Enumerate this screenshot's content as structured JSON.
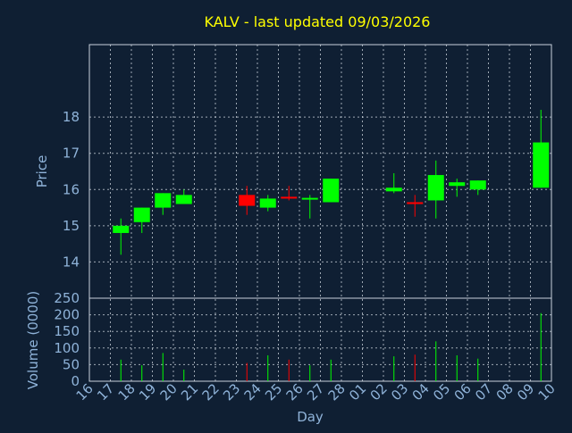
{
  "chart_data": {
    "type": "candlestick",
    "title": "KALV - last updated 09/03/2026",
    "xlabel": "Day",
    "price_ylabel": "Price",
    "volume_ylabel": "Volume (0000)",
    "x_ticks": [
      "16",
      "17",
      "18",
      "19",
      "20",
      "21",
      "22",
      "23",
      "24",
      "25",
      "26",
      "27",
      "28",
      "01",
      "02",
      "03",
      "04",
      "05",
      "06",
      "07",
      "08",
      "09",
      "10"
    ],
    "price_ylim": [
      13.0,
      20.0
    ],
    "price_ticks": [
      14,
      15,
      16,
      17,
      18
    ],
    "volume_ylim": [
      0,
      250
    ],
    "volume_ticks": [
      0,
      50,
      100,
      150,
      200,
      250
    ],
    "grid": true,
    "colors": {
      "background": "#0f1f33",
      "up": "#00ff00",
      "down": "#ff0000",
      "title": "#ffff00",
      "axis_text": "#8fb3d9",
      "grid": "#d0d8e0"
    },
    "candles": [
      {
        "day": "17",
        "open": 14.8,
        "high": 15.2,
        "low": 14.2,
        "close": 15.0,
        "volume": 65
      },
      {
        "day": "18",
        "open": 15.1,
        "high": 15.5,
        "low": 14.8,
        "close": 15.5,
        "volume": 48
      },
      {
        "day": "19",
        "open": 15.5,
        "high": 15.9,
        "low": 15.3,
        "close": 15.9,
        "volume": 85
      },
      {
        "day": "20",
        "open": 15.6,
        "high": 16.0,
        "low": 15.6,
        "close": 15.85,
        "volume": 35
      },
      {
        "day": "23",
        "open": 15.85,
        "high": 16.1,
        "low": 15.3,
        "close": 15.55,
        "volume": 55
      },
      {
        "day": "24",
        "open": 15.5,
        "high": 15.85,
        "low": 15.4,
        "close": 15.75,
        "volume": 78
      },
      {
        "day": "25",
        "open": 15.8,
        "high": 16.1,
        "low": 15.7,
        "close": 15.75,
        "volume": 65
      },
      {
        "day": "26",
        "open": 15.73,
        "high": 15.85,
        "low": 15.2,
        "close": 15.77,
        "volume": 48
      },
      {
        "day": "27",
        "open": 15.65,
        "high": 16.3,
        "low": 15.65,
        "close": 16.3,
        "volume": 65
      },
      {
        "day": "02",
        "open": 15.95,
        "high": 16.45,
        "low": 15.9,
        "close": 16.05,
        "volume": 75
      },
      {
        "day": "03",
        "open": 15.65,
        "high": 15.85,
        "low": 15.25,
        "close": 15.6,
        "volume": 80
      },
      {
        "day": "04",
        "open": 15.7,
        "high": 16.8,
        "low": 15.2,
        "close": 16.4,
        "volume": 120
      },
      {
        "day": "05",
        "open": 16.1,
        "high": 16.3,
        "low": 15.8,
        "close": 16.2,
        "volume": 78
      },
      {
        "day": "06",
        "open": 16.0,
        "high": 16.25,
        "low": 15.85,
        "close": 16.25,
        "volume": 68
      },
      {
        "day": "09",
        "open": 16.05,
        "high": 18.2,
        "low": 16.05,
        "close": 17.3,
        "volume": 205
      }
    ]
  }
}
